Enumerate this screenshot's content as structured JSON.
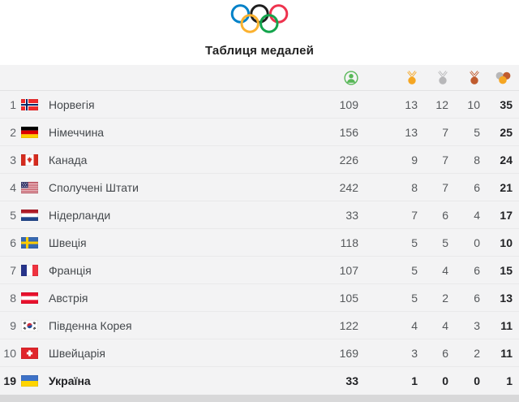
{
  "title": "Таблиця медалей",
  "logo": {
    "name": "olympic-rings"
  },
  "icons": {
    "athletes": "person-in-circle",
    "gold": "gold-medal",
    "silver": "silver-medal",
    "bronze": "bronze-medal",
    "total": "three-overlapping-medals"
  },
  "colors": {
    "gold": "#F5A623",
    "silver": "#B7B7B9",
    "bronze": "#C05B2E",
    "athletes_green": "#57B757",
    "ring_blue": "#0081C8",
    "ring_black": "#1E1E1E",
    "ring_red": "#EE334E",
    "ring_yellow": "#FBB12F",
    "ring_green": "#14A44C",
    "row_bg": "#F3F3F4",
    "highlight_text": "#202124"
  },
  "table": {
    "rows": [
      {
        "rank": "1",
        "flag": "no",
        "country": "Норвегія",
        "athletes": "109",
        "gold": "13",
        "silver": "12",
        "bronze": "10",
        "total": "35",
        "highlight": false
      },
      {
        "rank": "2",
        "flag": "de",
        "country": "Німеччина",
        "athletes": "156",
        "gold": "13",
        "silver": "7",
        "bronze": "5",
        "total": "25",
        "highlight": false
      },
      {
        "rank": "3",
        "flag": "ca",
        "country": "Канада",
        "athletes": "226",
        "gold": "9",
        "silver": "7",
        "bronze": "8",
        "total": "24",
        "highlight": false
      },
      {
        "rank": "4",
        "flag": "us",
        "country": "Сполучені Штати",
        "athletes": "242",
        "gold": "8",
        "silver": "7",
        "bronze": "6",
        "total": "21",
        "highlight": false
      },
      {
        "rank": "5",
        "flag": "nl",
        "country": "Нідерланди",
        "athletes": "33",
        "gold": "7",
        "silver": "6",
        "bronze": "4",
        "total": "17",
        "highlight": false
      },
      {
        "rank": "6",
        "flag": "se",
        "country": "Швеція",
        "athletes": "118",
        "gold": "5",
        "silver": "5",
        "bronze": "0",
        "total": "10",
        "highlight": false
      },
      {
        "rank": "7",
        "flag": "fr",
        "country": "Франція",
        "athletes": "107",
        "gold": "5",
        "silver": "4",
        "bronze": "6",
        "total": "15",
        "highlight": false
      },
      {
        "rank": "8",
        "flag": "at",
        "country": "Австрія",
        "athletes": "105",
        "gold": "5",
        "silver": "2",
        "bronze": "6",
        "total": "13",
        "highlight": false
      },
      {
        "rank": "9",
        "flag": "kr",
        "country": "Південна Корея",
        "athletes": "122",
        "gold": "4",
        "silver": "4",
        "bronze": "3",
        "total": "11",
        "highlight": false
      },
      {
        "rank": "10",
        "flag": "ch",
        "country": "Швейцарія",
        "athletes": "169",
        "gold": "3",
        "silver": "6",
        "bronze": "2",
        "total": "11",
        "highlight": false
      },
      {
        "rank": "19",
        "flag": "ua",
        "country": "Україна",
        "athletes": "33",
        "gold": "1",
        "silver": "0",
        "bronze": "0",
        "total": "1",
        "highlight": true
      }
    ]
  }
}
